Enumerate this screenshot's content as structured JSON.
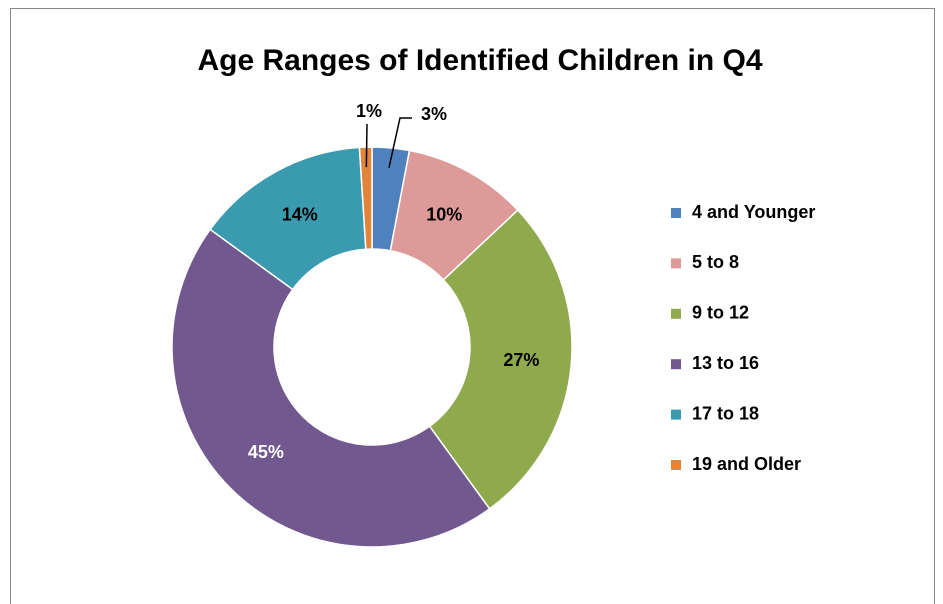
{
  "chart_data": {
    "type": "donut",
    "title": "Age Ranges of Identified Children in Q4",
    "categories": [
      "4 and Younger",
      "5 to 8",
      "9 to 12",
      "13 to 16",
      "17 to 18",
      "19 and Older"
    ],
    "values": [
      3,
      10,
      27,
      45,
      14,
      1
    ],
    "value_labels": [
      "3%",
      "10%",
      "27%",
      "45%",
      "14%",
      "1%"
    ],
    "colors": [
      "#4f81bd",
      "#dd9a99",
      "#8faa4d",
      "#71588f",
      "#3a9bb0",
      "#e3843b"
    ],
    "value_label_colors": [
      "#000000",
      "#000000",
      "#000000",
      "#ffffff",
      "#000000",
      "#000000"
    ],
    "legend": "right"
  }
}
